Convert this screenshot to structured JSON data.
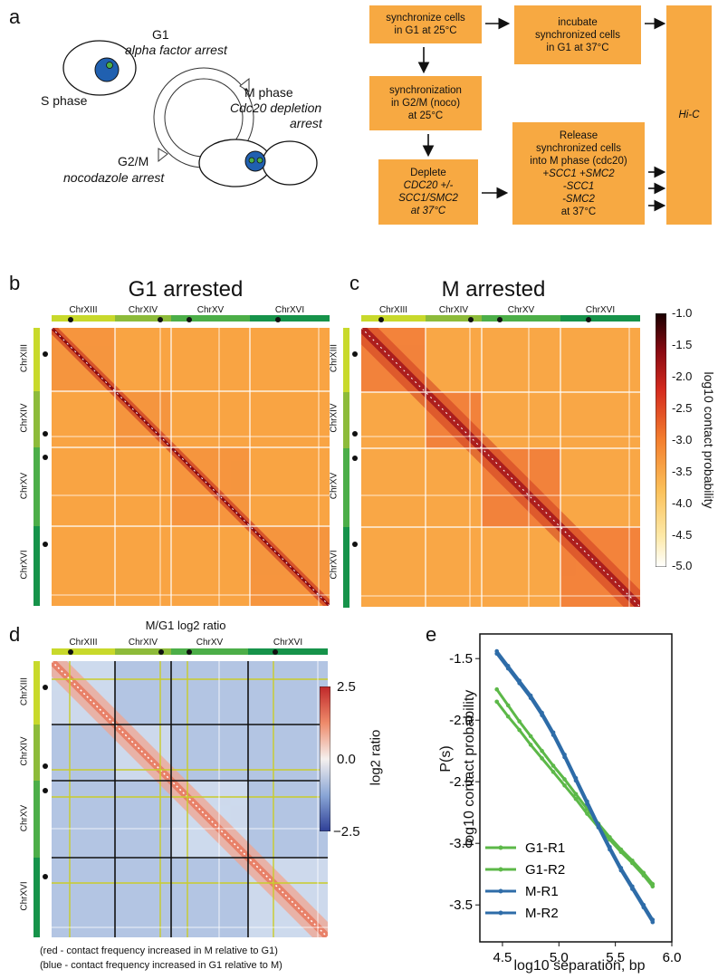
{
  "panels": {
    "a": "a",
    "b": "b",
    "c": "c",
    "d": "d",
    "e": "e"
  },
  "cycle": {
    "g1": "G1",
    "g1_arrest": "alpha factor arrest",
    "s_phase": "S phase",
    "m_phase": "M phase",
    "m_arrest_1": "Cdc20 depletion",
    "m_arrest_2": "arrest",
    "g2m": "G2/M",
    "g2m_arrest": "nocodazole arrest"
  },
  "flow": {
    "box1": [
      "synchronize cells",
      "in G1 at 25°C"
    ],
    "box2": [
      "incubate",
      "synchronized cells",
      "in G1 at 37°C"
    ],
    "box3": [
      "synchronization",
      "in G2/M (noco)",
      "at 25°C"
    ],
    "box4": [
      "Deplete",
      "CDC20 +/-",
      "SCC1/SMC2",
      "at 37°C"
    ],
    "box5": [
      "Release",
      "synchronized cells",
      "into M phase (cdc20)",
      "+SCC1 +SMC2",
      "-SCC1",
      "-SMC2",
      "at 37°C"
    ],
    "hic": "Hi-C"
  },
  "maps": {
    "g1_title": "G1 arrested",
    "m_title": "M arrested",
    "ratio_title": "M/G1 log2 ratio",
    "chromosomes": [
      "ChrXIII",
      "ChrXIV",
      "ChrXV",
      "ChrXVI"
    ],
    "chr_colors": [
      "#c8d92b",
      "#8dbb3a",
      "#4cae48",
      "#16934a"
    ]
  },
  "colorbar_prob": {
    "label": "log10 contact probability",
    "ticks": [
      "-1.0",
      "-1.5",
      "-2.0",
      "-2.5",
      "-3.0",
      "-3.5",
      "-4.0",
      "-4.5",
      "-5.0"
    ]
  },
  "colorbar_ratio": {
    "label": "log2 ratio",
    "ticks": [
      "2.5",
      "0.0",
      "−2.5"
    ]
  },
  "captions": {
    "red": "(red - contact frequency increased in M relative to G1)",
    "blue": "(blue - contact frequency increased in G1 relative to M)"
  },
  "chart_data": {
    "type": "line",
    "title": "",
    "xlabel": "log10 separation, bp",
    "ylabel_top": "P(s)",
    "ylabel": "log10 contact probability",
    "xlim": [
      4.3,
      6.0
    ],
    "ylim": [
      -3.8,
      -1.3
    ],
    "xticks": [
      "4.5",
      "5.0",
      "5.5",
      "6.0"
    ],
    "yticks": [
      "-1.5",
      "-2.0",
      "-2.5",
      "-3.0",
      "-3.5"
    ],
    "legend_position": "bottom-left",
    "x": [
      4.45,
      4.55,
      4.65,
      4.75,
      4.85,
      4.95,
      5.05,
      5.15,
      5.25,
      5.35,
      5.45,
      5.55,
      5.65,
      5.75,
      5.83
    ],
    "series": [
      {
        "name": "G1-R1",
        "color": "#5cb848",
        "values": [
          -1.75,
          -1.88,
          -2.01,
          -2.13,
          -2.25,
          -2.37,
          -2.48,
          -2.6,
          -2.72,
          -2.84,
          -2.95,
          -3.05,
          -3.14,
          -3.24,
          -3.33
        ]
      },
      {
        "name": "G1-R2",
        "color": "#5cb848",
        "values": [
          -1.85,
          -1.97,
          -2.08,
          -2.2,
          -2.31,
          -2.42,
          -2.53,
          -2.64,
          -2.76,
          -2.87,
          -2.97,
          -3.07,
          -3.16,
          -3.26,
          -3.35
        ]
      },
      {
        "name": "M-R1",
        "color": "#2e6ca8",
        "values": [
          -1.44,
          -1.56,
          -1.68,
          -1.8,
          -1.94,
          -2.1,
          -2.28,
          -2.47,
          -2.66,
          -2.85,
          -3.03,
          -3.2,
          -3.35,
          -3.5,
          -3.62
        ]
      },
      {
        "name": "M-R2",
        "color": "#2e6ca8",
        "values": [
          -1.46,
          -1.58,
          -1.7,
          -1.82,
          -1.96,
          -2.12,
          -2.3,
          -2.49,
          -2.68,
          -2.87,
          -3.05,
          -3.22,
          -3.37,
          -3.52,
          -3.64
        ]
      }
    ]
  }
}
